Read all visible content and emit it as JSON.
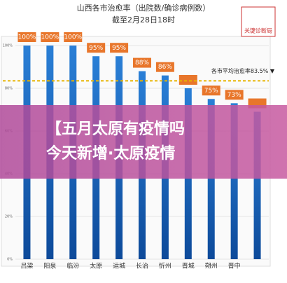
{
  "chart_data": {
    "type": "bar",
    "title": "山西各市治愈率（出院数/确诊病例数）",
    "subtitle": "截至2月28日18时",
    "categories": [
      "吕梁",
      "阳泉",
      "临汾",
      "太原",
      "运城",
      "长治",
      "忻州",
      "晋城",
      "朔州",
      "晋中",
      null
    ],
    "values": [
      100,
      100,
      100,
      95,
      95,
      88,
      86,
      80,
      75,
      73,
      69
    ],
    "value_labels": [
      "100%",
      "100%",
      "100%",
      "95%",
      "95%",
      "88%",
      "86%",
      null,
      "75%",
      "73%",
      null
    ],
    "color": "#1f77d4",
    "ylim": [
      0,
      100
    ],
    "yticks": [
      {
        "value": 0,
        "label": "0%"
      },
      {
        "value": 20,
        "label": "20%"
      },
      {
        "value": 40,
        "label": "40%"
      },
      {
        "value": 60,
        "label": "60%"
      },
      {
        "value": 80,
        "label": "80%"
      },
      {
        "value": 100,
        "label": "100%"
      }
    ],
    "grid": true,
    "average": {
      "value": 83.5,
      "label": "各市平均治愈率83.5% ▼"
    }
  },
  "watermark": "关键诊断局",
  "banner": {
    "lines": [
      "【五月太原有疫情吗",
      "今天新增·太原疫情"
    ]
  }
}
